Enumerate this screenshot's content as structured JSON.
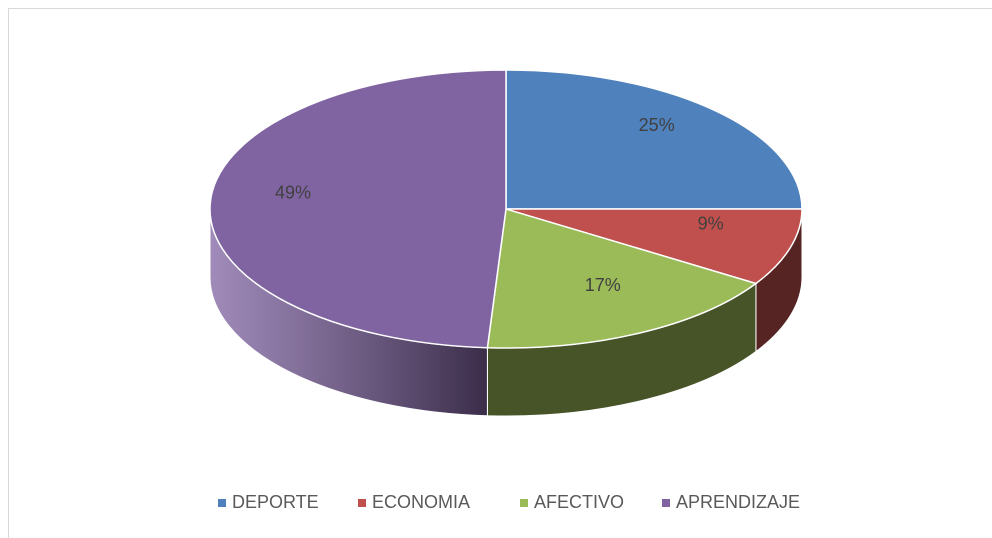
{
  "chart_data": {
    "type": "pie",
    "categories": [
      "DEPORTE",
      "ECONOMIA",
      "AFECTIVO",
      "APRENDIZAJE"
    ],
    "values": [
      25,
      9,
      17,
      49
    ],
    "value_labels": [
      "25%",
      "9%",
      "17%",
      "49%"
    ],
    "colors": [
      "#4f81bd",
      "#c0504d",
      "#9bbb59",
      "#8064a2"
    ],
    "legend": "bottom"
  }
}
